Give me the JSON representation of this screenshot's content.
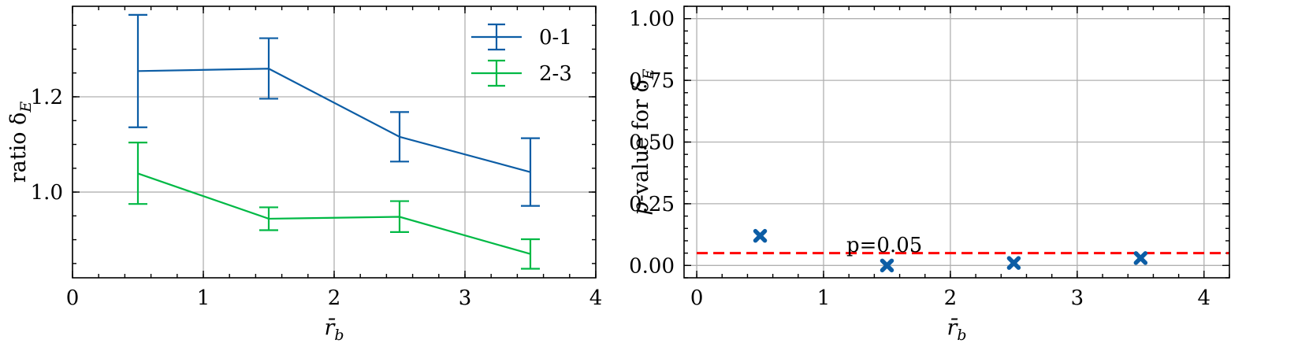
{
  "chart_data": [
    {
      "type": "line",
      "title": "",
      "xlabel": "r̄",
      "xlabel_sub": "b",
      "ylabel": "ratio δ",
      "ylabel_sub": "E",
      "xlim": [
        0,
        4
      ],
      "ylim": [
        0.82,
        1.39
      ],
      "xticks": [
        0,
        1,
        2,
        3,
        4
      ],
      "xtick_labels": [
        "0",
        "1",
        "2",
        "3",
        "4"
      ],
      "yticks": [
        1.0,
        1.2
      ],
      "ytick_labels": [
        "1.0",
        "1.2"
      ],
      "grid": true,
      "legend_position": "top-right",
      "error_bars": true,
      "x": [
        0.5,
        1.5,
        2.5,
        3.5
      ],
      "series": [
        {
          "name": "0-1",
          "color": "#0C5DA5",
          "values": [
            1.254,
            1.259,
            1.116,
            1.042
          ],
          "err_low": [
            1.136,
            1.196,
            1.064,
            0.971
          ],
          "err_high": [
            1.372,
            1.323,
            1.168,
            1.113
          ]
        },
        {
          "name": "2-3",
          "color": "#00B945",
          "values": [
            1.039,
            0.944,
            0.948,
            0.87
          ],
          "err_low": [
            0.975,
            0.92,
            0.916,
            0.839
          ],
          "err_high": [
            1.104,
            0.968,
            0.981,
            0.901
          ]
        }
      ]
    },
    {
      "type": "scatter",
      "title": "",
      "xlabel": "r̄",
      "xlabel_sub": "b",
      "ylabel_italic": "p",
      "ylabel": "-value for δ",
      "ylabel_sub": "E",
      "xlim": [
        -0.1,
        4.2
      ],
      "ylim": [
        -0.05,
        1.05
      ],
      "xticks": [
        0,
        1,
        2,
        3,
        4
      ],
      "xtick_labels": [
        "0",
        "1",
        "2",
        "3",
        "4"
      ],
      "yticks": [
        0.0,
        0.25,
        0.5,
        0.75,
        1.0
      ],
      "ytick_labels": [
        "0.00",
        "0.25",
        "0.50",
        "0.75",
        "1.00"
      ],
      "grid": true,
      "marker": "x-filled",
      "marker_color": "#0C5DA5",
      "x": [
        0.5,
        1.5,
        2.5,
        3.5
      ],
      "values": [
        0.12,
        0.0,
        0.01,
        0.03
      ],
      "reference_line": {
        "y": 0.05,
        "color": "#FF0000",
        "style": "dashed",
        "x_from": 0.0,
        "x_to": 4.2
      },
      "annotations": [
        {
          "text": "p=0.05",
          "x": 1.18,
          "y": 0.055
        }
      ]
    }
  ]
}
